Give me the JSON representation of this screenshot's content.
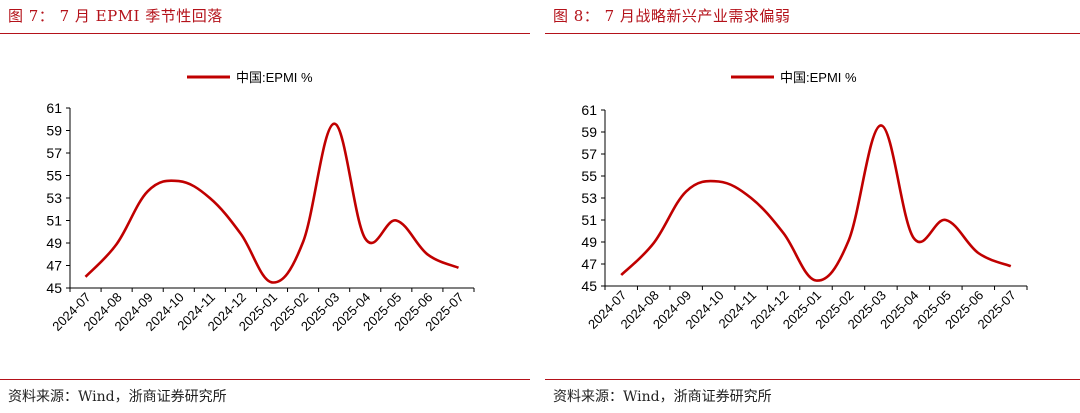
{
  "figures": [
    {
      "title": "图 7：  7 月 EPMI 季节性回落",
      "source": "资料来源：Wind，浙商证券研究所"
    },
    {
      "title": "图 8：  7 月战略新兴产业需求偏弱",
      "source": "资料来源：Wind，浙商证券研究所"
    }
  ],
  "colors": {
    "accent": "#b4121a",
    "line": "#c00000"
  },
  "chart_data": [
    {
      "type": "line",
      "categories": [
        "2024-07",
        "2024-08",
        "2024-09",
        "2024-10",
        "2024-11",
        "2024-12",
        "2025-01",
        "2025-02",
        "2025-03",
        "2025-04",
        "2025-05",
        "2025-06",
        "2025-07"
      ],
      "series": [
        {
          "name": "中国:EPMI %",
          "values": [
            46.0,
            48.9,
            53.6,
            54.5,
            53.0,
            49.8,
            45.5,
            49.1,
            59.6,
            49.4,
            51.0,
            48.0,
            46.8
          ]
        }
      ],
      "ylim": [
        45,
        61
      ],
      "yticks": [
        45,
        47,
        49,
        51,
        53,
        55,
        57,
        59,
        61
      ],
      "legend": "top-center",
      "grid": false,
      "smooth": true
    },
    {
      "type": "line",
      "categories": [
        "2024-07",
        "2024-08",
        "2024-09",
        "2024-10",
        "2024-11",
        "2024-12",
        "2025-01",
        "2025-02",
        "2025-03",
        "2025-04",
        "2025-05",
        "2025-06",
        "2025-07"
      ],
      "series": [
        {
          "name": "中国:EPMI %",
          "values": [
            46.0,
            48.9,
            53.6,
            54.5,
            53.0,
            49.8,
            45.5,
            49.1,
            59.6,
            49.4,
            51.0,
            48.0,
            46.8
          ]
        }
      ],
      "ylim": [
        45,
        61
      ],
      "yticks": [
        45,
        47,
        49,
        51,
        53,
        55,
        57,
        59,
        61
      ],
      "legend": "top-center",
      "grid": false,
      "smooth": true
    }
  ]
}
